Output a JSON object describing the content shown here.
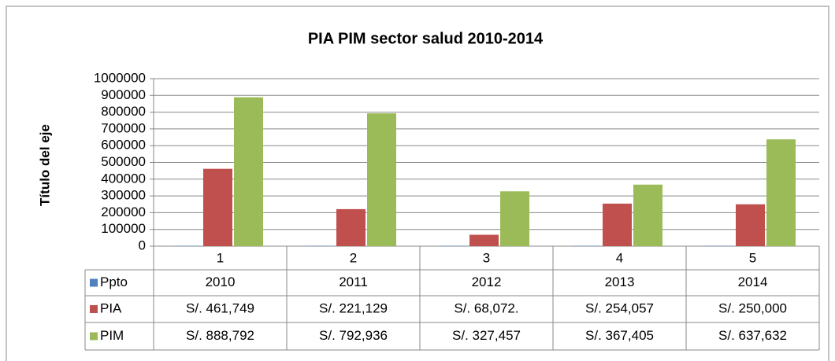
{
  "chart_data": {
    "type": "bar",
    "title": "PIA PIM sector salud 2010-2014",
    "y_label": "Título del eje",
    "categories": [
      "1",
      "2",
      "3",
      "4",
      "5"
    ],
    "series": [
      {
        "name": "Ppto",
        "color": "#4f81bd",
        "values": [
          2010,
          2011,
          2012,
          2013,
          2014
        ]
      },
      {
        "name": "PIA",
        "color": "#c0504d",
        "values": [
          461749,
          221129,
          68072,
          254057,
          250000
        ],
        "value_labels": [
          "S/. 461,749",
          "S/. 221,129",
          "S/. 68,072.",
          "S/. 254,057",
          "S/. 250,000"
        ]
      },
      {
        "name": "PIM",
        "color": "#9bbb59",
        "values": [
          888792,
          792936,
          327457,
          367405,
          637632
        ],
        "value_labels": [
          "S/. 888,792",
          "S/. 792,936",
          "S/. 327,457",
          "S/. 367,405",
          "S/. 637,632"
        ]
      }
    ],
    "ylim": [
      0,
      1000000
    ],
    "yticks": [
      0,
      100000,
      200000,
      300000,
      400000,
      500000,
      600000,
      700000,
      800000,
      900000,
      1000000
    ],
    "grid": true
  }
}
